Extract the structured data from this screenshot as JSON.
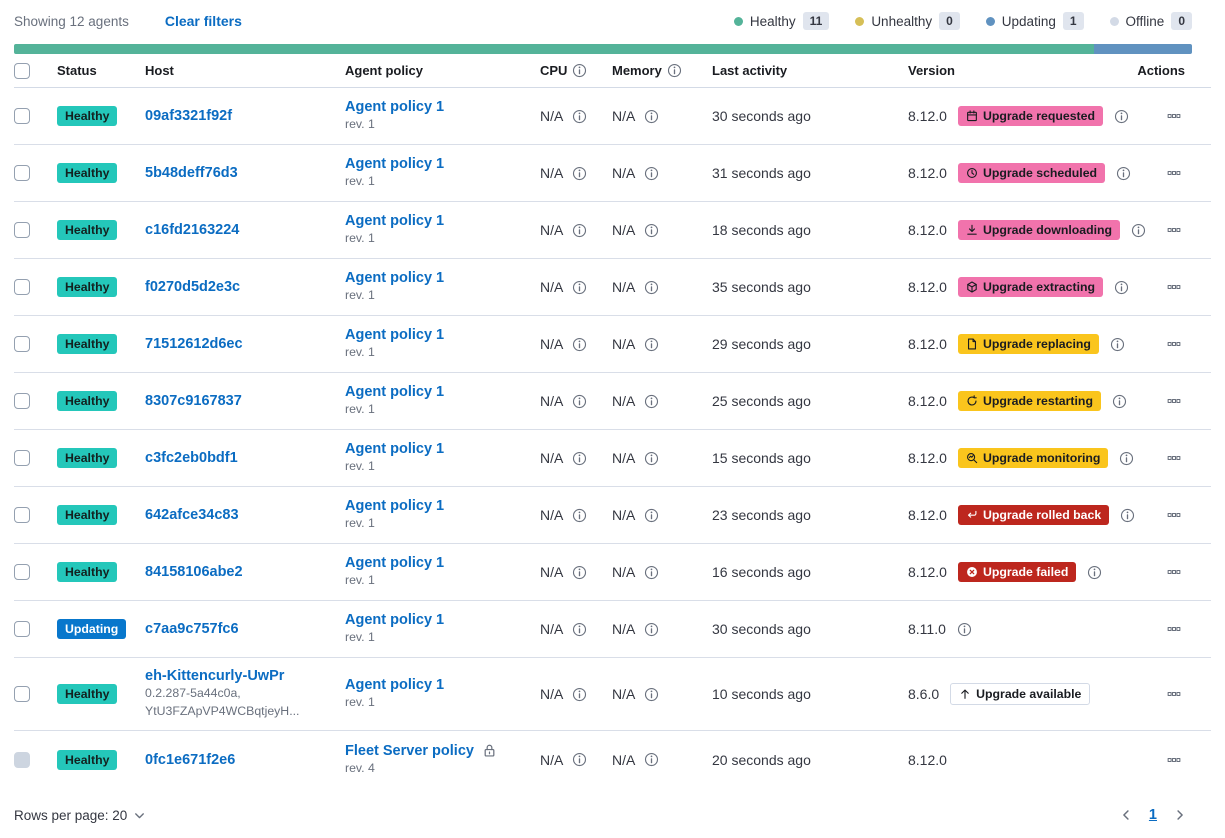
{
  "topbar": {
    "showing": "Showing 12 agents",
    "clear_filters": "Clear filters",
    "legend": [
      {
        "label": "Healthy",
        "count": "11",
        "color": "#54b399"
      },
      {
        "label": "Unhealthy",
        "count": "0",
        "color": "#d6bf57"
      },
      {
        "label": "Updating",
        "count": "1",
        "color": "#6092c0"
      },
      {
        "label": "Offline",
        "count": "0",
        "color": "#d3dae6"
      }
    ]
  },
  "healthbar": {
    "segments": [
      {
        "status": "healthy",
        "color": "#54b399",
        "fraction": 0.9167
      },
      {
        "status": "updating",
        "color": "#6092c0",
        "fraction": 0.0833
      }
    ]
  },
  "table": {
    "columns": [
      {
        "label": "Status"
      },
      {
        "label": "Host"
      },
      {
        "label": "Agent policy"
      },
      {
        "label": "CPU",
        "info": true
      },
      {
        "label": "Memory",
        "info": true
      },
      {
        "label": "Last activity"
      },
      {
        "label": "Version"
      },
      {
        "label": "Actions",
        "align": "right"
      }
    ],
    "rows": [
      {
        "status": {
          "label": "Healthy",
          "type": "healthy"
        },
        "host": "09af3321f92f",
        "host_sub": [],
        "policy": {
          "name": "Agent policy 1",
          "rev": "rev. 1",
          "locked": false
        },
        "cpu": "N/A",
        "memory": "N/A",
        "last_activity": "30 seconds ago",
        "version": "8.12.0",
        "upgrade": {
          "label": "Upgrade requested",
          "style": "pink",
          "icon": "calendar-icon"
        },
        "version_info": true,
        "checkbox_disabled": false
      },
      {
        "status": {
          "label": "Healthy",
          "type": "healthy"
        },
        "host": "5b48deff76d3",
        "host_sub": [],
        "policy": {
          "name": "Agent policy 1",
          "rev": "rev. 1",
          "locked": false
        },
        "cpu": "N/A",
        "memory": "N/A",
        "last_activity": "31 seconds ago",
        "version": "8.12.0",
        "upgrade": {
          "label": "Upgrade scheduled",
          "style": "pink",
          "icon": "clock-icon"
        },
        "version_info": true,
        "checkbox_disabled": false
      },
      {
        "status": {
          "label": "Healthy",
          "type": "healthy"
        },
        "host": "c16fd2163224",
        "host_sub": [],
        "policy": {
          "name": "Agent policy 1",
          "rev": "rev. 1",
          "locked": false
        },
        "cpu": "N/A",
        "memory": "N/A",
        "last_activity": "18 seconds ago",
        "version": "8.12.0",
        "upgrade": {
          "label": "Upgrade downloading",
          "style": "pink",
          "icon": "download-icon"
        },
        "version_info": true,
        "checkbox_disabled": false
      },
      {
        "status": {
          "label": "Healthy",
          "type": "healthy"
        },
        "host": "f0270d5d2e3c",
        "host_sub": [],
        "policy": {
          "name": "Agent policy 1",
          "rev": "rev. 1",
          "locked": false
        },
        "cpu": "N/A",
        "memory": "N/A",
        "last_activity": "35 seconds ago",
        "version": "8.12.0",
        "upgrade": {
          "label": "Upgrade extracting",
          "style": "pink",
          "icon": "package-icon"
        },
        "version_info": true,
        "checkbox_disabled": false
      },
      {
        "status": {
          "label": "Healthy",
          "type": "healthy"
        },
        "host": "71512612d6ec",
        "host_sub": [],
        "policy": {
          "name": "Agent policy 1",
          "rev": "rev. 1",
          "locked": false
        },
        "cpu": "N/A",
        "memory": "N/A",
        "last_activity": "29 seconds ago",
        "version": "8.12.0",
        "upgrade": {
          "label": "Upgrade replacing",
          "style": "warning",
          "icon": "document-icon"
        },
        "version_info": true,
        "checkbox_disabled": false
      },
      {
        "status": {
          "label": "Healthy",
          "type": "healthy"
        },
        "host": "8307c9167837",
        "host_sub": [],
        "policy": {
          "name": "Agent policy 1",
          "rev": "rev. 1",
          "locked": false
        },
        "cpu": "N/A",
        "memory": "N/A",
        "last_activity": "25 seconds ago",
        "version": "8.12.0",
        "upgrade": {
          "label": "Upgrade restarting",
          "style": "warning",
          "icon": "refresh-icon"
        },
        "version_info": true,
        "checkbox_disabled": false
      },
      {
        "status": {
          "label": "Healthy",
          "type": "healthy"
        },
        "host": "c3fc2eb0bdf1",
        "host_sub": [],
        "policy": {
          "name": "Agent policy 1",
          "rev": "rev. 1",
          "locked": false
        },
        "cpu": "N/A",
        "memory": "N/A",
        "last_activity": "15 seconds ago",
        "version": "8.12.0",
        "upgrade": {
          "label": "Upgrade monitoring",
          "style": "warning",
          "icon": "inspect-icon"
        },
        "version_info": true,
        "checkbox_disabled": false
      },
      {
        "status": {
          "label": "Healthy",
          "type": "healthy"
        },
        "host": "642afce34c83",
        "host_sub": [],
        "policy": {
          "name": "Agent policy 1",
          "rev": "rev. 1",
          "locked": false
        },
        "cpu": "N/A",
        "memory": "N/A",
        "last_activity": "23 seconds ago",
        "version": "8.12.0",
        "upgrade": {
          "label": "Upgrade rolled back",
          "style": "danger",
          "icon": "return-icon"
        },
        "version_info": true,
        "checkbox_disabled": false
      },
      {
        "status": {
          "label": "Healthy",
          "type": "healthy"
        },
        "host": "84158106abe2",
        "host_sub": [],
        "policy": {
          "name": "Agent policy 1",
          "rev": "rev. 1",
          "locked": false
        },
        "cpu": "N/A",
        "memory": "N/A",
        "last_activity": "16 seconds ago",
        "version": "8.12.0",
        "upgrade": {
          "label": "Upgrade failed",
          "style": "danger",
          "icon": "error-icon"
        },
        "version_info": true,
        "checkbox_disabled": false
      },
      {
        "status": {
          "label": "Updating",
          "type": "updating"
        },
        "host": "c7aa9c757fc6",
        "host_sub": [],
        "policy": {
          "name": "Agent policy 1",
          "rev": "rev. 1",
          "locked": false
        },
        "cpu": "N/A",
        "memory": "N/A",
        "last_activity": "30 seconds ago",
        "version": "8.11.0",
        "upgrade": null,
        "version_info": true,
        "checkbox_disabled": false
      },
      {
        "status": {
          "label": "Healthy",
          "type": "healthy"
        },
        "host": "eh-Kittencurly-UwPr",
        "host_sub": [
          "0.2.287-5a44c0a,",
          "YtU3FZApVP4WCBqtjeyH..."
        ],
        "policy": {
          "name": "Agent policy 1",
          "rev": "rev. 1",
          "locked": false
        },
        "cpu": "N/A",
        "memory": "N/A",
        "last_activity": "10 seconds ago",
        "version": "8.6.0",
        "upgrade": {
          "label": "Upgrade available",
          "style": "hollow",
          "icon": "arrow-up-icon"
        },
        "version_info": false,
        "checkbox_disabled": false
      },
      {
        "status": {
          "label": "Healthy",
          "type": "healthy"
        },
        "host": "0fc1e671f2e6",
        "host_sub": [],
        "policy": {
          "name": "Fleet Server policy",
          "rev": "rev. 4",
          "locked": true
        },
        "cpu": "N/A",
        "memory": "N/A",
        "last_activity": "20 seconds ago",
        "version": "8.12.0",
        "upgrade": null,
        "version_info": false,
        "checkbox_disabled": true
      }
    ]
  },
  "footer": {
    "rows_per_page": "Rows per page: 20",
    "page": "1"
  }
}
